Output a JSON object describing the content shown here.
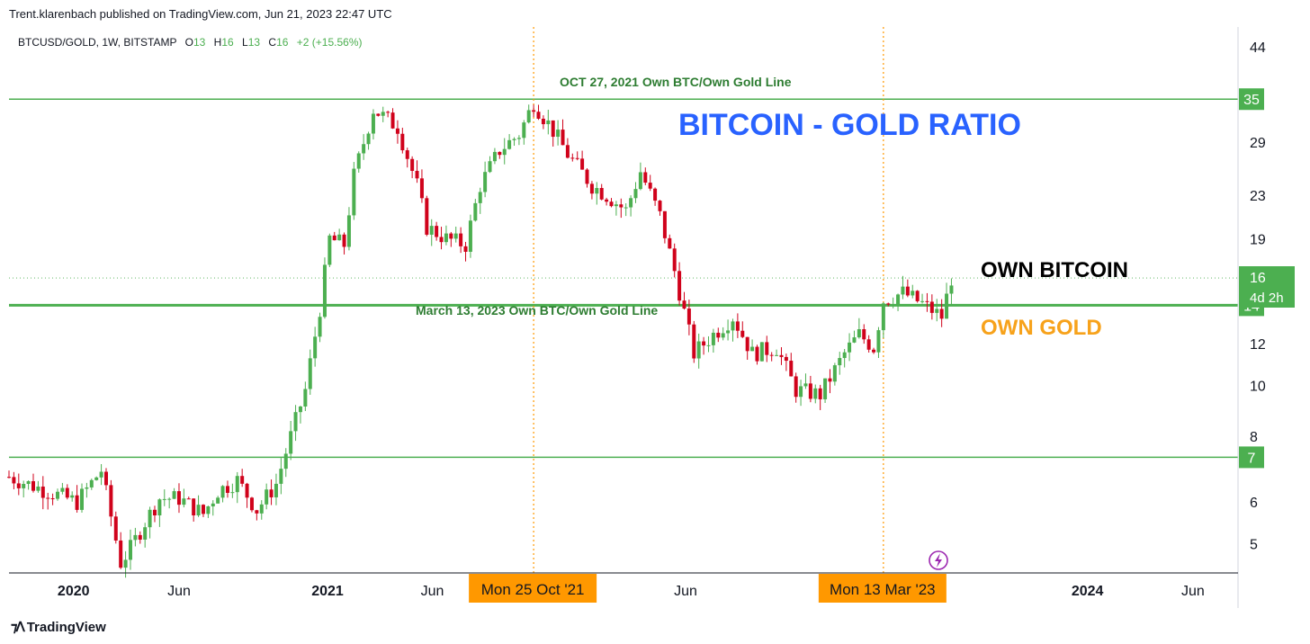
{
  "header": {
    "published": "Trent.klarenbach published on TradingView.com, Jun 21, 2023 22:47 UTC"
  },
  "footer": {
    "brand": "TradingView"
  },
  "colors": {
    "up": "#4caf50",
    "down": "#d0021b",
    "hline": "#4caf50",
    "title_blue": "#2962ff",
    "own_gold": "#f7a21b",
    "marker_orange": "#ff9800",
    "text": "#131722"
  },
  "chart_data": {
    "type": "candlestick",
    "symbol_info": {
      "symbol": "BTCUSD/GOLD, 1W, BITSTAMP",
      "o_label": "O",
      "o": "13",
      "h_label": "H",
      "h": "16",
      "l_label": "L",
      "l": "13",
      "c_label": "C",
      "c": "16",
      "change": "+2 (+15.56%)"
    },
    "title": "BITCOIN - GOLD RATIO",
    "y_scale": "log",
    "ylim": [
      4.4,
      48
    ],
    "y_ticks": [
      "44",
      "29",
      "23",
      "19",
      "12",
      "10",
      "8",
      "6",
      "5"
    ],
    "x_ticks": [
      "2020",
      "Jun",
      "2021",
      "Jun",
      "Jun",
      "2024",
      "Jun"
    ],
    "x_range": [
      "2019-09-30",
      "2024-08-05"
    ],
    "x_tick_dates": [
      "2020-01-01",
      "2020-06-01",
      "2021-01-01",
      "2021-06-01",
      "2022-06-01",
      "2024-01-01",
      "2024-06-01"
    ],
    "horizontal_lines": [
      {
        "value": 35,
        "label": "35"
      },
      {
        "value": 14.2,
        "label": "14"
      },
      {
        "value": 7.3,
        "label": "7"
      }
    ],
    "current_price": {
      "value": "16",
      "countdown": "4d 2h"
    },
    "vertical_markers": [
      {
        "date": "2021-10-25",
        "label": "Mon 25 Oct '21"
      },
      {
        "date": "2023-03-13",
        "label": "Mon 13 Mar '23"
      }
    ],
    "annotations": [
      {
        "text": "OCT 27, 2021 Own BTC/Own Gold Line"
      },
      {
        "text": "March 13, 2023 Own BTC/Own Gold Line"
      },
      {
        "text": "OWN BITCOIN"
      },
      {
        "text": "OWN GOLD"
      }
    ],
    "weekly_closes": [
      {
        "d": "2019-09-30",
        "v": 6.7
      },
      {
        "d": "2020-01-06",
        "v": 6.0
      },
      {
        "d": "2020-02-10",
        "v": 6.9
      },
      {
        "d": "2020-03-09",
        "v": 4.6
      },
      {
        "d": "2020-03-23",
        "v": 4.9
      },
      {
        "d": "2020-04-13",
        "v": 5.5
      },
      {
        "d": "2020-05-04",
        "v": 6.1
      },
      {
        "d": "2020-06-01",
        "v": 6.1
      },
      {
        "d": "2020-07-06",
        "v": 5.7
      },
      {
        "d": "2020-07-27",
        "v": 6.3
      },
      {
        "d": "2020-08-24",
        "v": 6.6
      },
      {
        "d": "2020-09-21",
        "v": 5.8
      },
      {
        "d": "2020-10-19",
        "v": 6.5
      },
      {
        "d": "2020-11-09",
        "v": 8.0
      },
      {
        "d": "2020-11-30",
        "v": 9.8
      },
      {
        "d": "2020-12-21",
        "v": 14.0
      },
      {
        "d": "2021-01-04",
        "v": 19.0
      },
      {
        "d": "2021-01-25",
        "v": 18.5
      },
      {
        "d": "2021-02-08",
        "v": 25.0
      },
      {
        "d": "2021-03-08",
        "v": 33.5
      },
      {
        "d": "2021-04-12",
        "v": 31.0
      },
      {
        "d": "2021-05-10",
        "v": 24.0
      },
      {
        "d": "2021-05-24",
        "v": 20.0
      },
      {
        "d": "2021-06-21",
        "v": 19.0
      },
      {
        "d": "2021-07-19",
        "v": 18.5
      },
      {
        "d": "2021-08-09",
        "v": 24.0
      },
      {
        "d": "2021-09-06",
        "v": 28.0
      },
      {
        "d": "2021-10-04",
        "v": 30.0
      },
      {
        "d": "2021-10-25",
        "v": 34.5
      },
      {
        "d": "2021-11-22",
        "v": 30.5
      },
      {
        "d": "2021-12-13",
        "v": 27.5
      },
      {
        "d": "2022-01-17",
        "v": 24.0
      },
      {
        "d": "2022-02-07",
        "v": 23.0
      },
      {
        "d": "2022-03-07",
        "v": 21.5
      },
      {
        "d": "2022-03-28",
        "v": 25.5
      },
      {
        "d": "2022-04-25",
        "v": 21.0
      },
      {
        "d": "2022-05-16",
        "v": 16.5
      },
      {
        "d": "2022-06-13",
        "v": 11.5
      },
      {
        "d": "2022-07-11",
        "v": 12.5
      },
      {
        "d": "2022-08-08",
        "v": 13.5
      },
      {
        "d": "2022-09-05",
        "v": 11.5
      },
      {
        "d": "2022-10-10",
        "v": 11.8
      },
      {
        "d": "2022-11-07",
        "v": 9.8
      },
      {
        "d": "2022-12-12",
        "v": 9.6
      },
      {
        "d": "2023-01-16",
        "v": 11.5
      },
      {
        "d": "2023-02-06",
        "v": 12.5
      },
      {
        "d": "2023-02-27",
        "v": 11.8
      },
      {
        "d": "2023-03-13",
        "v": 14.5
      },
      {
        "d": "2023-04-10",
        "v": 15.0
      },
      {
        "d": "2023-05-08",
        "v": 14.3
      },
      {
        "d": "2023-06-05",
        "v": 13.5
      },
      {
        "d": "2023-06-19",
        "v": 16.0
      }
    ]
  }
}
